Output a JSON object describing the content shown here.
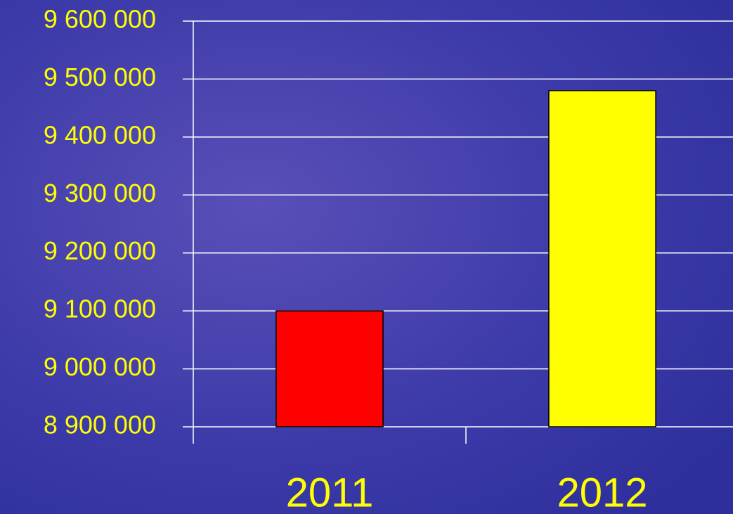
{
  "chart_data": {
    "type": "bar",
    "categories": [
      "2011",
      "2012"
    ],
    "values": [
      9100000,
      9480000
    ],
    "colors": [
      "#ff0000",
      "#ffff00"
    ],
    "ylim": [
      8900000,
      9600000
    ],
    "yticks": [
      {
        "value": 8900000,
        "label": "8 900 000"
      },
      {
        "value": 9000000,
        "label": "9 000 000"
      },
      {
        "value": 9100000,
        "label": "9 100 000"
      },
      {
        "value": 9200000,
        "label": "9 200 000"
      },
      {
        "value": 9300000,
        "label": "9 300 000"
      },
      {
        "value": 9400000,
        "label": "9 400 000"
      },
      {
        "value": 9500000,
        "label": "9 500 000"
      },
      {
        "value": 9600000,
        "label": "9 600 000"
      }
    ],
    "grid": true
  }
}
